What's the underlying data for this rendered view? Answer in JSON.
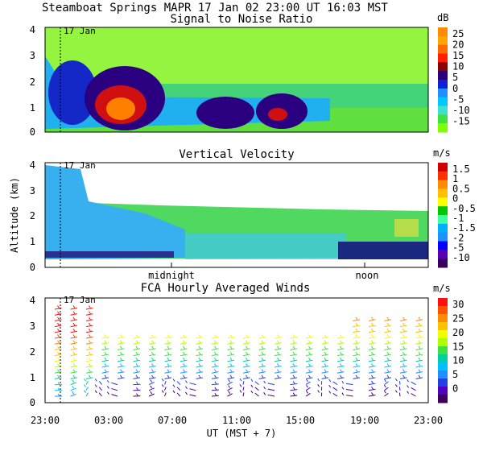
{
  "header": {
    "title_line": "Steamboat Springs  MAPR 17 Jan 02  23:00 UT  16:03  MST"
  },
  "chart_data": [
    {
      "type": "heatmap",
      "title": "Signal to Noise Ratio",
      "ylabel": "",
      "yticks": [
        "0",
        "1",
        "2",
        "3",
        "4"
      ],
      "ylim": [
        0,
        4
      ],
      "date_marker": "17 Jan",
      "colorbar": {
        "unit": "dB",
        "labels": [
          "25",
          "20",
          "15",
          "10",
          "5",
          "0",
          "-5",
          "-10",
          "-15"
        ],
        "colors": [
          "#ff8c00",
          "#ffa500",
          "#ff6a00",
          "#ff2000",
          "#8b0000",
          "#2b007a",
          "#1020d0",
          "#1e90ff",
          "#00c8ff",
          "#40e0d0",
          "#40e040",
          "#80ff00"
        ]
      }
    },
    {
      "type": "heatmap",
      "title": "Vertical Velocity",
      "ylabel": "Altitude (km)",
      "yticks": [
        "0",
        "1",
        "2",
        "3",
        "4"
      ],
      "ylim": [
        0,
        4
      ],
      "date_marker": "17 Jan",
      "time_annotations": [
        "midnight",
        "noon"
      ],
      "colorbar": {
        "unit": "m/s",
        "labels": [
          "1.5",
          "1",
          "0.5",
          "0",
          "-0.5",
          "-1",
          "-1.5",
          "-2",
          "-5",
          "-10"
        ],
        "colors": [
          "#d00000",
          "#ff3000",
          "#ff8c00",
          "#ffc000",
          "#ffff00",
          "#00c800",
          "#40ffa0",
          "#00b0ff",
          "#1e90ff",
          "#0000ff",
          "#5a00b0",
          "#3a0060"
        ]
      }
    },
    {
      "type": "wind_barbs",
      "title": "FCA Hourly Averaged Winds",
      "xlabel": "UT  (MST + 7)",
      "xticks": [
        "23:00",
        "03:00",
        "07:00",
        "11:00",
        "15:00",
        "19:00",
        "23:00"
      ],
      "yticks": [
        "0",
        "1",
        "2",
        "3",
        "4"
      ],
      "ylim": [
        0,
        4
      ],
      "date_marker": "17 Jan",
      "colorbar": {
        "unit": "m/s",
        "labels": [
          "30",
          "25",
          "20",
          "15",
          "10",
          "5",
          "0"
        ],
        "colors": [
          "#ff1010",
          "#ff5000",
          "#ff8c00",
          "#ffc000",
          "#f0ff00",
          "#b0ff00",
          "#40e040",
          "#00d0a0",
          "#00c0ff",
          "#1e90ff",
          "#2040e0",
          "#5000c0",
          "#400060"
        ]
      }
    }
  ]
}
